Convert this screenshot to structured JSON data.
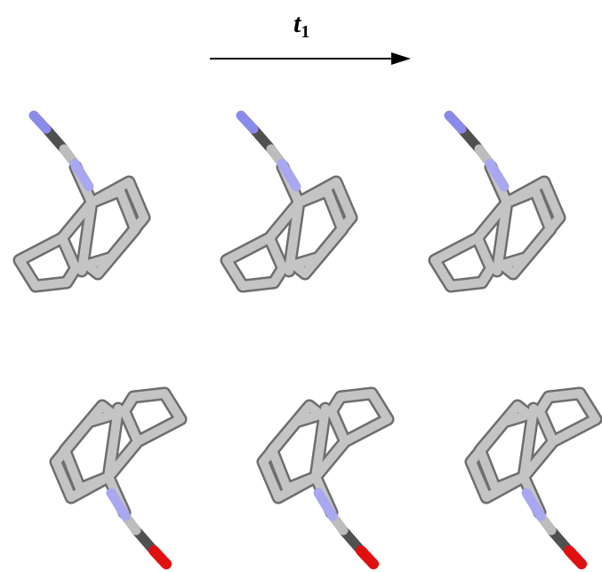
{
  "arrow_label": {
    "base": "t",
    "subscript": "1"
  }
}
